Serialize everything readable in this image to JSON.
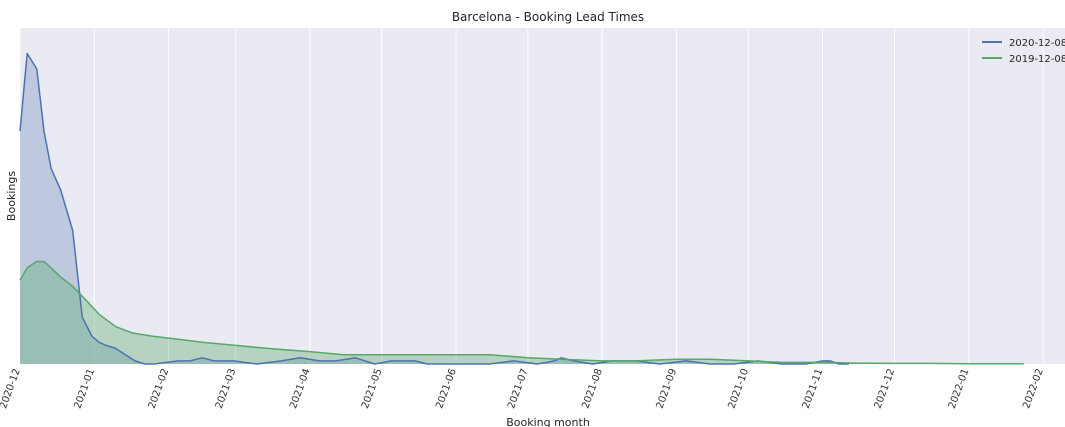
{
  "chart_data": {
    "type": "area",
    "title": "Barcelona - Booking  Lead Times",
    "xlabel": "Booking  month",
    "ylabel": "Bookings",
    "grid": true,
    "legend_position": "top-right",
    "x_ticks": [
      "2020-12",
      "2021-01",
      "2021-02",
      "2021-03",
      "2021-04",
      "2021-05",
      "2021-06",
      "2021-07",
      "2021-08",
      "2021-09",
      "2021-10",
      "2021-11",
      "2021-12",
      "2022-01",
      "2022-02"
    ],
    "y_scale": "unlabeled",
    "series": [
      {
        "name": "2020-12-08",
        "color": "#4c72b0",
        "x": [
          "2020-12-01",
          "2020-12-04",
          "2020-12-08",
          "2020-12-11",
          "2020-12-14",
          "2020-12-18",
          "2020-12-23",
          "2020-12-27",
          "2020-12-31",
          "2021-01-03",
          "2021-01-06",
          "2021-01-10",
          "2021-01-14",
          "2021-01-18",
          "2021-01-22",
          "2021-01-26",
          "2021-02-05",
          "2021-02-10",
          "2021-02-15",
          "2021-02-20",
          "2021-02-28",
          "2021-03-10",
          "2021-03-20",
          "2021-03-28",
          "2021-04-05",
          "2021-04-12",
          "2021-04-20",
          "2021-04-28",
          "2021-05-05",
          "2021-05-10",
          "2021-05-15",
          "2021-05-20",
          "2021-05-28",
          "2021-06-05",
          "2021-06-15",
          "2021-06-25",
          "2021-07-05",
          "2021-07-12",
          "2021-07-15",
          "2021-07-20",
          "2021-07-28",
          "2021-08-05",
          "2021-08-15",
          "2021-08-25",
          "2021-09-05",
          "2021-09-15",
          "2021-09-25",
          "2021-10-05",
          "2021-10-15",
          "2021-10-25",
          "2021-11-01",
          "2021-11-04",
          "2021-11-08",
          "2021-11-12"
        ],
        "y": [
          75,
          100,
          95,
          75,
          63,
          56,
          43,
          15,
          9,
          7,
          6,
          5,
          3,
          1,
          0,
          0,
          1,
          1,
          2,
          1,
          1,
          0,
          1,
          2,
          1,
          1,
          2,
          0,
          1,
          1,
          1,
          0,
          0,
          0,
          0,
          1,
          0,
          1,
          2,
          1,
          0,
          1,
          1,
          0,
          1,
          0,
          0,
          1,
          0,
          0,
          1,
          1,
          0,
          0
        ]
      },
      {
        "name": "2019-12-08",
        "color": "#55a868",
        "x": [
          "2020-12-01",
          "2020-12-04",
          "2020-12-08",
          "2020-12-11",
          "2020-12-14",
          "2020-12-18",
          "2020-12-23",
          "2020-12-28",
          "2021-01-03",
          "2021-01-10",
          "2021-01-17",
          "2021-01-25",
          "2021-02-05",
          "2021-02-15",
          "2021-03-01",
          "2021-03-15",
          "2021-04-01",
          "2021-04-15",
          "2021-05-01",
          "2021-05-15",
          "2021-06-01",
          "2021-06-15",
          "2021-07-01",
          "2021-07-15",
          "2021-08-01",
          "2021-08-15",
          "2021-09-01",
          "2021-09-15",
          "2021-10-01",
          "2021-10-15",
          "2021-11-01",
          "2021-11-15",
          "2021-12-01",
          "2021-12-15",
          "2022-01-01",
          "2022-01-15",
          "2022-01-24"
        ],
        "y": [
          27,
          31,
          33,
          33,
          31,
          28,
          25,
          21,
          16,
          12,
          10,
          9,
          8,
          7,
          6,
          5,
          4,
          3,
          3,
          3,
          3,
          3,
          2,
          1.5,
          1,
          1,
          1.5,
          1.5,
          1,
          0.5,
          0.5,
          0.3,
          0.2,
          0.2,
          0.1,
          0.1,
          0.1
        ]
      }
    ]
  }
}
